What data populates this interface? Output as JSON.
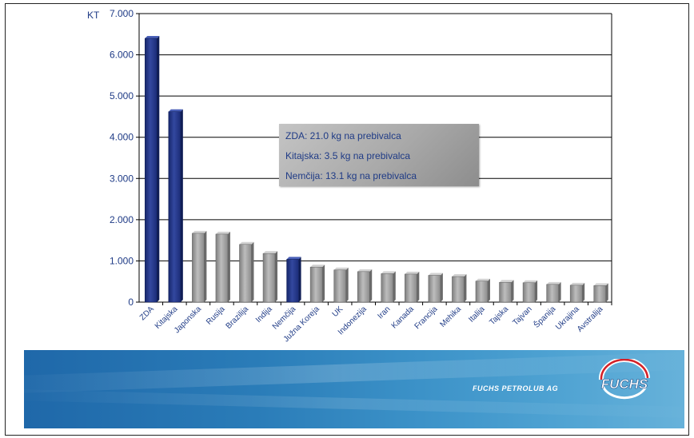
{
  "chart_data": {
    "type": "bar",
    "ylabel": "KT",
    "ylim": [
      0,
      7000
    ],
    "yticks": [
      "0",
      "1.000",
      "2.000",
      "3.000",
      "4.000",
      "5.000",
      "6.000",
      "7.000"
    ],
    "grid": true,
    "categories": [
      "ZDA",
      "Kitajska",
      "Japonska",
      "Rusija",
      "Brazilija",
      "Indija",
      "Nemčija",
      "Južna Koreja",
      "UK",
      "Indonezija",
      "Iran",
      "Kanada",
      "Francija",
      "Mehika",
      "Italija",
      "Tajska",
      "Tajvan",
      "Španija",
      "Ukrajina",
      "Avstralija"
    ],
    "values": [
      6400,
      4620,
      1670,
      1650,
      1400,
      1180,
      1040,
      850,
      780,
      740,
      690,
      680,
      650,
      620,
      510,
      480,
      470,
      430,
      410,
      400
    ],
    "highlighted": [
      "ZDA",
      "Kitajska",
      "Nemčija"
    ],
    "annotations": [
      "ZDA: 21.0 kg na prebivalca",
      "Kitajska: 3.5 kg na prebivalca",
      "Nemčija: 13.1 kg na prebivalca"
    ]
  },
  "colors": {
    "highlight_bar": "#253a8e",
    "regular_bar": "#9d9d9d",
    "axis_text": "#1f3b86",
    "banner": "#2a7cb8"
  },
  "banner": {
    "company": "FUCHS PETROLUB AG",
    "logo_text": "FUCHS"
  }
}
